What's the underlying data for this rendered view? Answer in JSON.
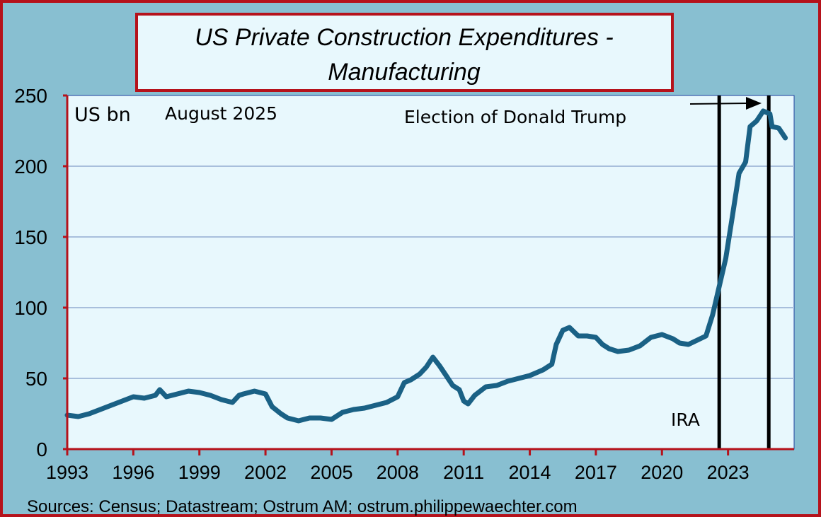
{
  "colors": {
    "background": "#88bfd1",
    "plot_bg": "#e8f8fd",
    "frame": "#b5121b",
    "line": "#1a6185",
    "grid": "#a8bfdc",
    "marker": "#000000"
  },
  "chart_data": {
    "type": "line",
    "title_line1": "US Private Construction Expenditures -",
    "title_line2": "Manufacturing",
    "unit_label": "US bn",
    "date_label": "August 2025",
    "source": "Sources: Census; Datastream; Ostrum AM; ostrum.philippewaechter.com",
    "xlim": [
      1993,
      2026
    ],
    "ylim": [
      0,
      250
    ],
    "grid": true,
    "xticks": [
      "1993",
      "1996",
      "1999",
      "2002",
      "2005",
      "2008",
      "2011",
      "2014",
      "2017",
      "2020",
      "2023"
    ],
    "yticks": [
      "0",
      "50",
      "100",
      "150",
      "200",
      "250"
    ],
    "annotations": [
      {
        "text": "IRA",
        "x": 2022.6
      },
      {
        "text": "Election of Donald Trump",
        "x": 2024.85
      }
    ],
    "series": [
      {
        "x": [
          1993.0,
          1993.5,
          1994.0,
          1994.5,
          1995.0,
          1995.5,
          1996.0,
          1996.5,
          1997.0,
          1997.2,
          1997.5,
          1998.0,
          1998.5,
          1999.0,
          1999.5,
          2000.0,
          2000.5,
          2000.8,
          2001.0,
          2001.5,
          2002.0,
          2002.3,
          2002.7,
          2003.0,
          2003.5,
          2004.0,
          2004.5,
          2005.0,
          2005.5,
          2006.0,
          2006.5,
          2007.0,
          2007.5,
          2008.0,
          2008.3,
          2008.6,
          2009.0,
          2009.3,
          2009.6,
          2009.9,
          2010.2,
          2010.5,
          2010.8,
          2011.0,
          2011.2,
          2011.5,
          2012.0,
          2012.5,
          2013.0,
          2013.5,
          2014.0,
          2014.3,
          2014.6,
          2015.0,
          2015.2,
          2015.5,
          2015.8,
          2016.2,
          2016.6,
          2017.0,
          2017.3,
          2017.6,
          2018.0,
          2018.5,
          2019.0,
          2019.5,
          2020.0,
          2020.5,
          2020.8,
          2021.2,
          2021.6,
          2022.0,
          2022.3,
          2022.6,
          2022.9,
          2023.2,
          2023.5,
          2023.8,
          2024.0,
          2024.3,
          2024.6,
          2024.9,
          2025.0,
          2025.3,
          2025.6
        ],
        "y": [
          24,
          23,
          25,
          28,
          31,
          34,
          37,
          36,
          38,
          42,
          37,
          39,
          41,
          40,
          38,
          35,
          33,
          38,
          39,
          41,
          39,
          30,
          25,
          22,
          20,
          22,
          22,
          21,
          26,
          28,
          29,
          31,
          33,
          37,
          47,
          49,
          53,
          58,
          65,
          59,
          52,
          45,
          42,
          34,
          32,
          38,
          44,
          45,
          48,
          50,
          52,
          54,
          56,
          60,
          74,
          84,
          86,
          80,
          80,
          79,
          74,
          71,
          69,
          70,
          73,
          79,
          81,
          78,
          75,
          74,
          77,
          80,
          95,
          115,
          135,
          165,
          195,
          203,
          228,
          232,
          239,
          237,
          228,
          227,
          220
        ]
      }
    ]
  }
}
